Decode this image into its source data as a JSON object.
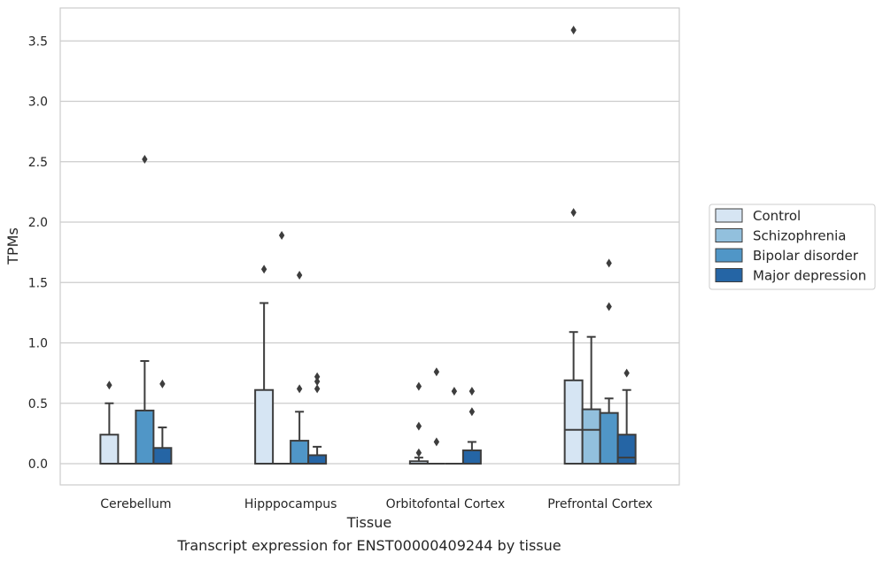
{
  "caption": "Transcript expression for ENST00000409244 by tissue",
  "chart_data": {
    "type": "box",
    "xlabel": "Tissue",
    "ylabel": "TPMs",
    "ylim": [
      -0.18,
      3.78
    ],
    "yticks": [
      "0.0",
      "0.5",
      "1.0",
      "1.5",
      "2.0",
      "2.5",
      "3.0",
      "3.5"
    ],
    "ytick_values": [
      0,
      0.5,
      1.0,
      1.5,
      2.0,
      2.5,
      3.0,
      3.5
    ],
    "grid": "horizontal",
    "legend_placement": "right",
    "categories": [
      "Cerebellum",
      "Hipppocampus",
      "Orbitofontal Cortex",
      "Prefrontal Cortex"
    ],
    "series": [
      {
        "name": "Control",
        "color": "#d6e5f3",
        "boxes": [
          {
            "q1": 0.0,
            "median": 0.0,
            "q3": 0.24,
            "whisker_low": 0.0,
            "whisker_high": 0.5,
            "outliers": [
              0.65
            ]
          },
          {
            "q1": 0.0,
            "median": 0.0,
            "q3": 0.61,
            "whisker_low": 0.0,
            "whisker_high": 1.33,
            "outliers": [
              1.61
            ]
          },
          {
            "q1": 0.0,
            "median": 0.0,
            "q3": 0.02,
            "whisker_low": 0.0,
            "whisker_high": 0.05,
            "outliers": [
              0.09,
              0.31,
              0.64
            ]
          },
          {
            "q1": 0.0,
            "median": 0.28,
            "q3": 0.69,
            "whisker_low": 0.0,
            "whisker_high": 1.09,
            "outliers": [
              2.08,
              3.59
            ]
          }
        ]
      },
      {
        "name": "Schizophrenia",
        "color": "#92c0dd",
        "boxes": [
          {
            "q1": 0.0,
            "median": 0.0,
            "q3": 0.0,
            "whisker_low": 0.0,
            "whisker_high": 0.0,
            "outliers": []
          },
          {
            "q1": 0.0,
            "median": 0.0,
            "q3": 0.0,
            "whisker_low": 0.0,
            "whisker_high": 0.0,
            "outliers": [
              1.89
            ]
          },
          {
            "q1": 0.0,
            "median": 0.0,
            "q3": 0.0,
            "whisker_low": 0.0,
            "whisker_high": 0.0,
            "outliers": [
              0.18,
              0.76
            ]
          },
          {
            "q1": 0.0,
            "median": 0.28,
            "q3": 0.45,
            "whisker_low": 0.0,
            "whisker_high": 1.05,
            "outliers": []
          }
        ]
      },
      {
        "name": "Bipolar disorder",
        "color": "#5096c7",
        "boxes": [
          {
            "q1": 0.0,
            "median": 0.0,
            "q3": 0.44,
            "whisker_low": 0.0,
            "whisker_high": 0.85,
            "outliers": [
              2.52
            ]
          },
          {
            "q1": 0.0,
            "median": 0.0,
            "q3": 0.19,
            "whisker_low": 0.0,
            "whisker_high": 0.43,
            "outliers": [
              0.62,
              1.56
            ]
          },
          {
            "q1": 0.0,
            "median": 0.0,
            "q3": 0.0,
            "whisker_low": 0.0,
            "whisker_high": 0.0,
            "outliers": [
              0.6
            ]
          },
          {
            "q1": 0.0,
            "median": 0.0,
            "q3": 0.42,
            "whisker_low": 0.0,
            "whisker_high": 0.54,
            "outliers": [
              1.3,
              1.66
            ]
          }
        ]
      },
      {
        "name": "Major depression",
        "color": "#2565a5",
        "boxes": [
          {
            "q1": 0.0,
            "median": 0.0,
            "q3": 0.13,
            "whisker_low": 0.0,
            "whisker_high": 0.3,
            "outliers": [
              0.66
            ]
          },
          {
            "q1": 0.0,
            "median": 0.0,
            "q3": 0.07,
            "whisker_low": 0.0,
            "whisker_high": 0.14,
            "outliers": [
              0.62,
              0.68,
              0.72
            ]
          },
          {
            "q1": 0.0,
            "median": 0.0,
            "q3": 0.11,
            "whisker_low": 0.0,
            "whisker_high": 0.18,
            "outliers": [
              0.43,
              0.6
            ]
          },
          {
            "q1": 0.0,
            "median": 0.05,
            "q3": 0.24,
            "whisker_low": 0.0,
            "whisker_high": 0.61,
            "outliers": [
              0.75
            ]
          }
        ]
      }
    ]
  }
}
